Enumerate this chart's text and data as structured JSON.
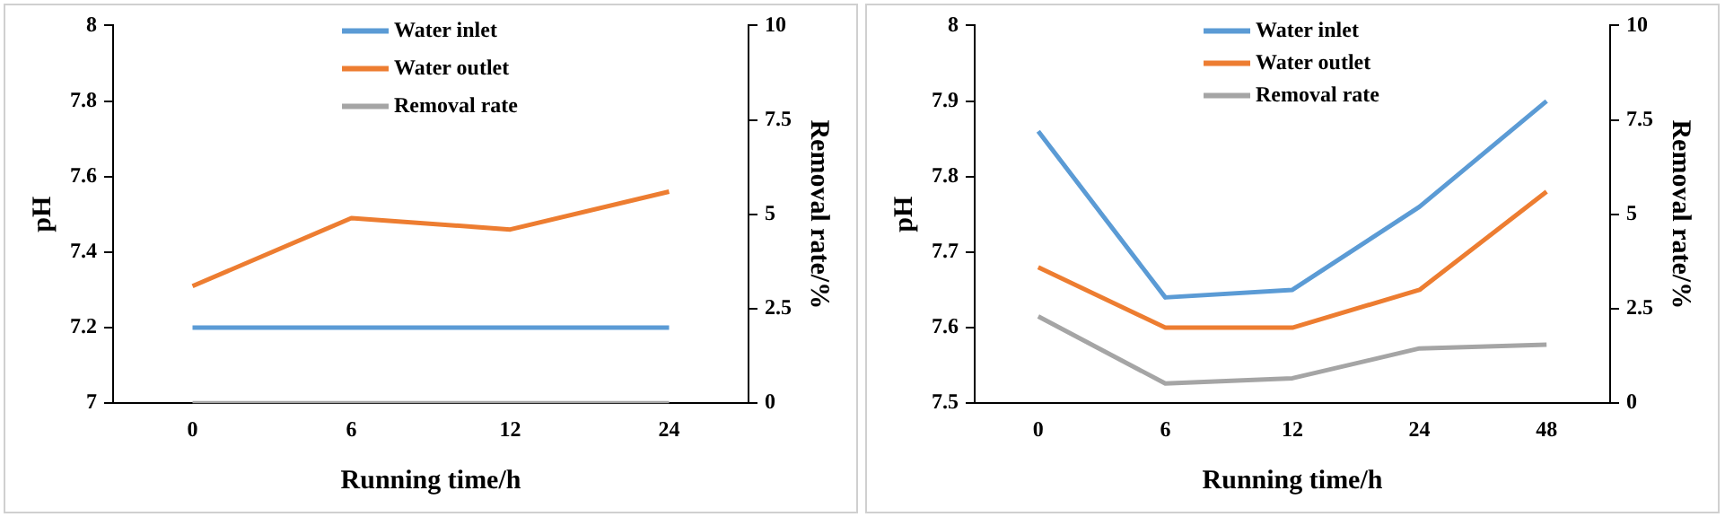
{
  "chart_data": [
    {
      "type": "line",
      "categories": [
        "0",
        "6",
        "12",
        "24"
      ],
      "xlabel": "Running time/h",
      "ylabel": "pH",
      "y2label": "Removal rate/%",
      "ylim": [
        7,
        8
      ],
      "yticks": [
        7,
        7.2,
        7.4,
        7.6,
        7.8,
        8
      ],
      "y2lim": [
        0,
        10
      ],
      "y2ticks": [
        0,
        2.5,
        5,
        7.5,
        10
      ],
      "grid": false,
      "legend": "top",
      "marker": "none",
      "line_style": "solid",
      "series": [
        {
          "name": "Water inlet",
          "color": "#5b9bd5",
          "values": [
            7.2,
            7.2,
            7.2,
            7.2
          ]
        },
        {
          "name": "Water outlet",
          "color": "#ed7d31",
          "values": [
            7.31,
            7.49,
            7.46,
            7.56
          ]
        },
        {
          "name": "Removal rate",
          "color": "#a5a5a5",
          "axis": "y2",
          "values": [
            0,
            0,
            0,
            0
          ]
        }
      ]
    },
    {
      "type": "line",
      "categories": [
        "0",
        "6",
        "12",
        "24",
        "48"
      ],
      "xlabel": "Running time/h",
      "ylabel": "pH",
      "y2label": "Removal rate/%",
      "ylim": [
        7.5,
        8
      ],
      "yticks": [
        7.5,
        7.6,
        7.7,
        7.8,
        7.9,
        8
      ],
      "y2lim": [
        0,
        10
      ],
      "y2ticks": [
        0,
        2.5,
        5,
        7.5,
        10
      ],
      "grid": false,
      "legend": "top",
      "marker": "none",
      "line_style": "solid",
      "series": [
        {
          "name": "Water inlet",
          "color": "#5b9bd5",
          "values": [
            7.86,
            7.64,
            7.65,
            7.76,
            7.9
          ]
        },
        {
          "name": "Water outlet",
          "color": "#ed7d31",
          "values": [
            7.68,
            7.6,
            7.6,
            7.65,
            7.78
          ]
        },
        {
          "name": "Removal rate",
          "color": "#a5a5a5",
          "axis": "y2",
          "values": [
            2.3,
            0.52,
            0.66,
            1.45,
            1.55
          ]
        }
      ]
    }
  ]
}
